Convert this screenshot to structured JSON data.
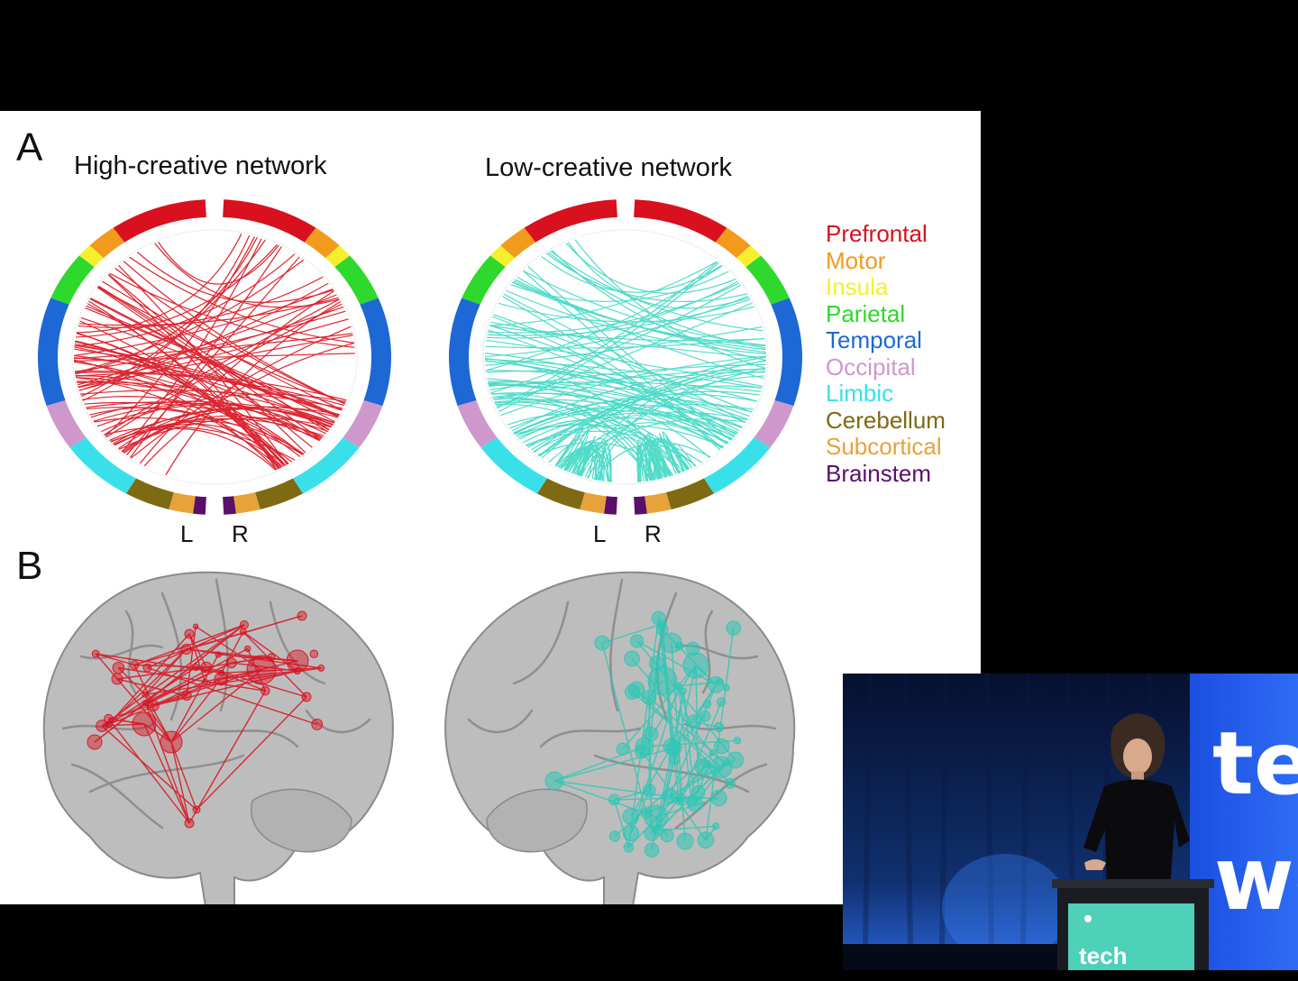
{
  "panels": {
    "a_letter": "A",
    "b_letter": "B"
  },
  "networks": [
    {
      "title": "High-creative network",
      "chord_color": "#d9101e"
    },
    {
      "title": "Low-creative network",
      "chord_color": "#3fd8c4"
    }
  ],
  "hemispheres": {
    "left": "L",
    "right": "R"
  },
  "legend": [
    {
      "label": "Prefrontal",
      "color": "#d9101e"
    },
    {
      "label": "Motor",
      "color": "#f29a1c"
    },
    {
      "label": "Insula",
      "color": "#f6ef2d"
    },
    {
      "label": "Parietal",
      "color": "#2fd82c"
    },
    {
      "label": "Temporal",
      "color": "#1d68d4"
    },
    {
      "label": "Occipital",
      "color": "#cf98cc"
    },
    {
      "label": "Limbic",
      "color": "#39e0ea"
    },
    {
      "label": "Cerebellum",
      "color": "#7e6a12"
    },
    {
      "label": "Subcortical",
      "color": "#e7a23a"
    },
    {
      "label": "Brainstem",
      "color": "#5a0f6a"
    }
  ],
  "video_inset": {
    "brand_line1": "te",
    "brand_line2": "we",
    "podium_text": "tech"
  }
}
